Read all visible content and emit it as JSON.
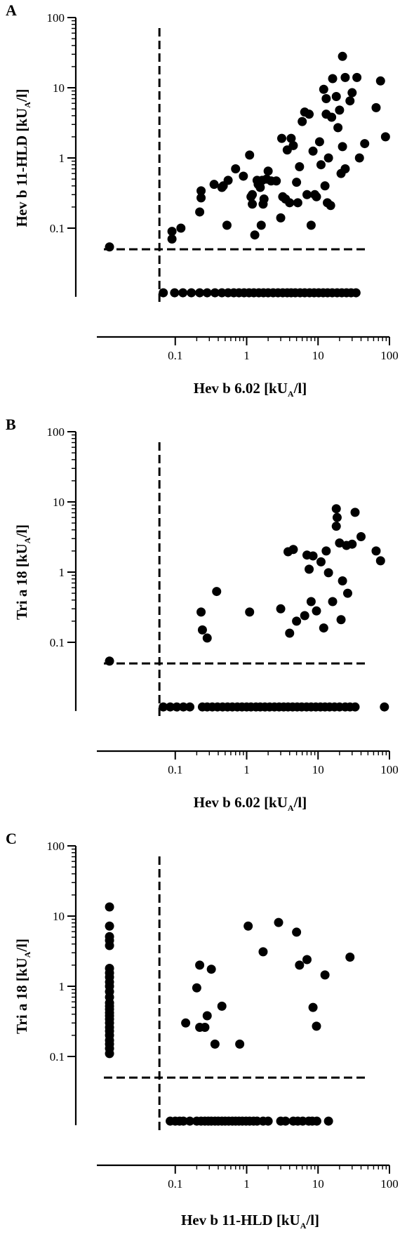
{
  "figure": {
    "panels": [
      {
        "letter": "A",
        "xlabel": {
          "pre": "Hev b 6.02 [kU",
          "sub": "A",
          "post": "/l]"
        },
        "ylabel": {
          "pre": "Hev b 11-HLD [kU",
          "sub": "A",
          "post": "/l]"
        }
      },
      {
        "letter": "B",
        "xlabel": {
          "pre": "Hev b 6.02 [kU",
          "sub": "A",
          "post": "/l]"
        },
        "ylabel": {
          "pre": "Tri a 18 [kU",
          "sub": "A",
          "post": "/l]"
        }
      },
      {
        "letter": "C",
        "xlabel": {
          "pre": "Hev b 11-HLD [kU",
          "sub": "A",
          "post": "/l]"
        },
        "ylabel": {
          "pre": "Tri a 18 [kU",
          "sub": "A",
          "post": "/l]"
        }
      }
    ],
    "tick_labels": [
      "0.1",
      "1",
      "10",
      "100"
    ]
  },
  "chart_data": [
    {
      "type": "scatter",
      "title": "A",
      "xlabel": "Hev b 6.02 [kUA/l]",
      "ylabel": "Hev b 11-HLD [kUA/l]",
      "x_scale": "log",
      "y_scale": "log",
      "xlim": [
        0.01,
        100
      ],
      "ylim": [
        0.01,
        100
      ],
      "xticks": [
        0.1,
        1,
        10,
        100
      ],
      "yticks": [
        0.1,
        1,
        10,
        100
      ],
      "cutoff_x": 0.06,
      "cutoff_y": 0.05,
      "below_cutoff_value": 0.012,
      "points": [
        [
          0.09,
          0.09
        ],
        [
          0.09,
          0.07
        ],
        [
          0.12,
          0.1
        ],
        [
          0.22,
          0.17
        ],
        [
          0.23,
          0.27
        ],
        [
          0.23,
          0.34
        ],
        [
          0.35,
          0.42
        ],
        [
          0.45,
          0.38
        ],
        [
          0.55,
          0.48
        ],
        [
          0.47,
          0.4
        ],
        [
          0.53,
          0.11
        ],
        [
          0.7,
          0.7
        ],
        [
          0.9,
          0.55
        ],
        [
          1.1,
          1.1
        ],
        [
          1.15,
          0.28
        ],
        [
          1.2,
          0.22
        ],
        [
          1.2,
          0.3
        ],
        [
          1.3,
          0.08
        ],
        [
          1.4,
          0.48
        ],
        [
          1.45,
          0.42
        ],
        [
          1.55,
          0.38
        ],
        [
          1.6,
          0.11
        ],
        [
          1.65,
          0.48
        ],
        [
          1.7,
          0.22
        ],
        [
          1.75,
          0.26
        ],
        [
          1.9,
          0.5
        ],
        [
          2.0,
          0.65
        ],
        [
          2.2,
          0.47
        ],
        [
          2.6,
          0.47
        ],
        [
          3.0,
          0.14
        ],
        [
          3.1,
          1.9
        ],
        [
          3.2,
          0.28
        ],
        [
          3.5,
          0.26
        ],
        [
          3.7,
          1.3
        ],
        [
          4.0,
          0.23
        ],
        [
          4.2,
          1.9
        ],
        [
          4.5,
          1.5
        ],
        [
          5.0,
          0.45
        ],
        [
          5.2,
          0.23
        ],
        [
          5.5,
          0.75
        ],
        [
          6.0,
          3.3
        ],
        [
          6.5,
          4.5
        ],
        [
          7.0,
          0.3
        ],
        [
          7.5,
          4.2
        ],
        [
          8.0,
          0.11
        ],
        [
          8.5,
          1.25
        ],
        [
          9.0,
          0.3
        ],
        [
          9.5,
          0.28
        ],
        [
          10.5,
          1.7
        ],
        [
          11.0,
          0.8
        ],
        [
          12.0,
          9.5
        ],
        [
          12.5,
          0.4
        ],
        [
          13.0,
          7.0
        ],
        [
          13.0,
          4.2
        ],
        [
          13.5,
          0.23
        ],
        [
          14.0,
          1.0
        ],
        [
          15.0,
          0.21
        ],
        [
          15.5,
          3.8
        ],
        [
          16.0,
          13.5
        ],
        [
          18.0,
          7.5
        ],
        [
          19.0,
          2.7
        ],
        [
          20.0,
          4.8
        ],
        [
          21.0,
          0.6
        ],
        [
          22.0,
          1.45
        ],
        [
          22.0,
          28.0
        ],
        [
          24.0,
          14.0
        ],
        [
          24.0,
          0.7
        ],
        [
          28.0,
          6.5
        ],
        [
          30.0,
          8.5
        ],
        [
          35.0,
          14.0
        ],
        [
          38.0,
          1.0
        ],
        [
          45.0,
          1.6
        ],
        [
          65.0,
          5.2
        ],
        [
          75.0,
          12.5
        ],
        [
          88.0,
          2.0
        ]
      ],
      "points_at_zero_x": [
        0.054
      ],
      "points_at_zero_y": [
        0.068,
        0.098,
        0.128,
        0.168,
        0.22,
        0.28,
        0.36,
        0.45,
        0.55,
        0.66,
        0.78,
        0.92,
        1.08,
        1.26,
        1.48,
        1.72,
        2.0,
        2.35,
        2.75,
        3.2,
        3.7,
        4.2,
        4.8,
        5.6,
        6.5,
        7.6,
        8.8,
        10.2,
        11.8,
        13.6,
        15.8,
        18.5,
        21.5,
        25.0,
        29.0,
        34.0
      ]
    },
    {
      "type": "scatter",
      "title": "B",
      "xlabel": "Hev b 6.02 [kUA/l]",
      "ylabel": "Tri a 18 [kUA/l]",
      "x_scale": "log",
      "y_scale": "log",
      "xlim": [
        0.01,
        100
      ],
      "ylim": [
        0.01,
        100
      ],
      "xticks": [
        0.1,
        1,
        10,
        100
      ],
      "yticks": [
        0.1,
        1,
        10,
        100
      ],
      "cutoff_x": 0.06,
      "cutoff_y": 0.05,
      "below_cutoff_value": 0.012,
      "points": [
        [
          0.23,
          0.27
        ],
        [
          0.24,
          0.15
        ],
        [
          0.28,
          0.115
        ],
        [
          0.38,
          0.53
        ],
        [
          1.1,
          0.27
        ],
        [
          3.0,
          0.3
        ],
        [
          3.8,
          1.95
        ],
        [
          4.0,
          0.135
        ],
        [
          4.5,
          2.1
        ],
        [
          5.0,
          0.2
        ],
        [
          6.5,
          0.24
        ],
        [
          7.0,
          1.75
        ],
        [
          7.5,
          1.1
        ],
        [
          8.0,
          0.38
        ],
        [
          8.5,
          1.7
        ],
        [
          9.5,
          0.28
        ],
        [
          11.0,
          1.4
        ],
        [
          12.0,
          0.16
        ],
        [
          13.0,
          2.0
        ],
        [
          14.0,
          0.98
        ],
        [
          16.0,
          0.38
        ],
        [
          18.0,
          4.5
        ],
        [
          18.0,
          8.0
        ],
        [
          18.5,
          6.0
        ],
        [
          20.0,
          2.6
        ],
        [
          21.0,
          0.21
        ],
        [
          22.0,
          0.75
        ],
        [
          25.0,
          2.4
        ],
        [
          26.0,
          0.5
        ],
        [
          30.0,
          2.5
        ],
        [
          33.0,
          7.1
        ],
        [
          40.0,
          3.2
        ],
        [
          65.0,
          2.0
        ],
        [
          75.0,
          1.45
        ]
      ],
      "points_at_zero_x": [
        0.054
      ],
      "points_at_zero_y": [
        0.068,
        0.085,
        0.105,
        0.13,
        0.16,
        0.24,
        0.28,
        0.33,
        0.39,
        0.46,
        0.54,
        0.63,
        0.74,
        0.86,
        1.0,
        1.15,
        1.35,
        1.55,
        1.8,
        2.1,
        2.45,
        2.85,
        3.3,
        3.8,
        4.4,
        5.1,
        5.9,
        6.9,
        8.0,
        9.3,
        10.8,
        12.5,
        14.5,
        17.0,
        20.0,
        24.0,
        28.0,
        33.0,
        85.0
      ]
    },
    {
      "type": "scatter",
      "title": "C",
      "xlabel": "Hev b 11-HLD [kUA/l]",
      "ylabel": "Tri a 18 [kUA/l]",
      "x_scale": "log",
      "y_scale": "log",
      "xlim": [
        0.01,
        100
      ],
      "ylim": [
        0.01,
        100
      ],
      "xticks": [
        0.1,
        1,
        10,
        100
      ],
      "yticks": [
        0.1,
        1,
        10,
        100
      ],
      "cutoff_x": 0.06,
      "cutoff_y": 0.05,
      "below_cutoff_value": 0.012,
      "points": [
        [
          0.14,
          0.3
        ],
        [
          0.2,
          0.95
        ],
        [
          0.22,
          2.0
        ],
        [
          0.22,
          0.26
        ],
        [
          0.26,
          0.26
        ],
        [
          0.28,
          0.38
        ],
        [
          0.32,
          1.75
        ],
        [
          0.36,
          0.15
        ],
        [
          0.45,
          0.52
        ],
        [
          0.8,
          0.15
        ],
        [
          1.05,
          7.2
        ],
        [
          1.7,
          3.1
        ],
        [
          2.8,
          8.1
        ],
        [
          5.0,
          5.9
        ],
        [
          5.5,
          2.0
        ],
        [
          7.0,
          2.4
        ],
        [
          8.5,
          0.5
        ],
        [
          9.5,
          0.27
        ],
        [
          12.5,
          1.45
        ],
        [
          28.0,
          2.6
        ]
      ],
      "points_at_zero_x": [
        0.012,
        0.11,
        0.13,
        0.15,
        0.17,
        0.2,
        0.23,
        0.26,
        0.3,
        0.34,
        0.38,
        0.42,
        0.47,
        0.52,
        0.58,
        0.7,
        0.84,
        1.0,
        1.15,
        1.35,
        1.55,
        1.8,
        3.8,
        4.5,
        5.1,
        7.2,
        13.5
      ],
      "points_at_zero_y": [
        0.085,
        0.1,
        0.115,
        0.13,
        0.16,
        0.2,
        0.23,
        0.26,
        0.29,
        0.32,
        0.36,
        0.4,
        0.45,
        0.5,
        0.56,
        0.63,
        0.7,
        0.78,
        0.87,
        0.98,
        1.1,
        1.25,
        1.4,
        1.7,
        2.0,
        3.0,
        3.5,
        4.5,
        5.2,
        6.1,
        7.4,
        8.3,
        9.6,
        14.0
      ]
    }
  ]
}
